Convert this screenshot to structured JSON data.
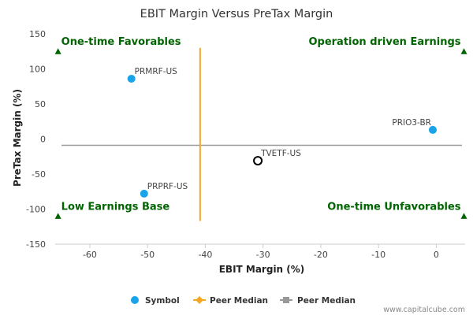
{
  "chart_data": {
    "type": "scatter",
    "title": "EBIT Margin Versus PreTax Margin",
    "xlabel": "EBIT Margin (%)",
    "ylabel": "PreTax Margin (%)",
    "xlim": [
      -66,
      5
    ],
    "ylim": [
      -150,
      150
    ],
    "x_ticks": [
      -60,
      -50,
      -40,
      -30,
      -20,
      -10,
      0
    ],
    "y_ticks": [
      -150,
      -100,
      -50,
      0,
      50,
      100,
      150
    ],
    "grid": false,
    "points": [
      {
        "label": "PRMRF-US",
        "x": -52.8,
        "y": 86
      },
      {
        "label": "PRPRF-US",
        "x": -50.6,
        "y": -78
      },
      {
        "label": "PRIO3-BR",
        "x": -0.6,
        "y": 13
      },
      {
        "label": "TVETF-US",
        "x": -30.9,
        "y": -31,
        "highlight": true
      }
    ],
    "peer_median_x": -40.9,
    "peer_median_y": -9,
    "quadrant_labels": {
      "top_left": "One-time Favorables",
      "top_right": "Operation driven Earnings",
      "bottom_left": "Low Earnings Base",
      "bottom_right": "One-time Unfavorables"
    },
    "legend": {
      "placement": "bottom",
      "items": [
        "Symbol",
        "Peer Median",
        "Peer Median"
      ]
    },
    "colors": {
      "symbol": "#1aa3e8",
      "highlight_stroke": "#000000",
      "peer_median_x": "#f5a623",
      "peer_median_y": "#999999",
      "quadrant": "#006400"
    }
  },
  "credit": "www.capitalcube.com"
}
